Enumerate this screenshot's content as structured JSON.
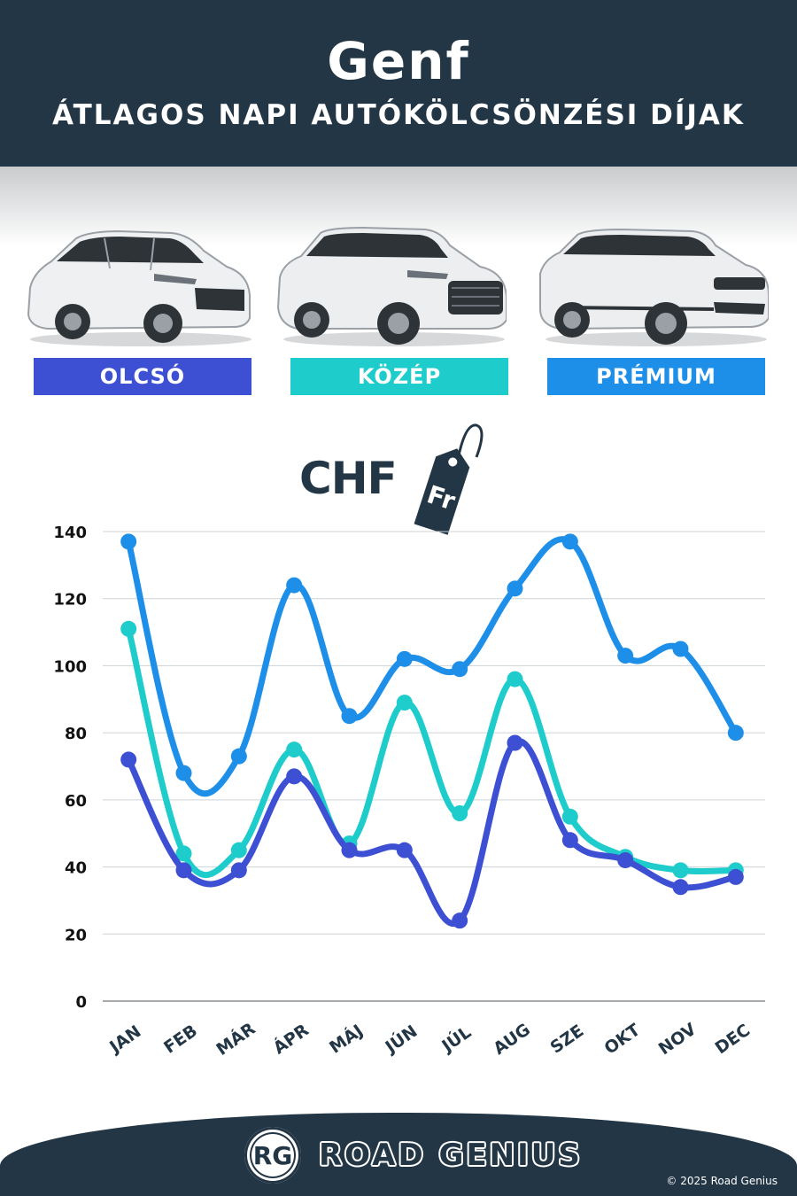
{
  "header": {
    "city": "Genf",
    "subtitle": "ÁTLAGOS NAPI AUTÓKÖLCSÖNZÉSI DÍJAK"
  },
  "categories": [
    {
      "label": "OLCSÓ",
      "color": "#3D4FD3",
      "car_icon": "hatchback-car-icon"
    },
    {
      "label": "KÖZÉP",
      "color": "#1DCCCB",
      "car_icon": "suv-car-icon"
    },
    {
      "label": "PRÉMIUM",
      "color": "#1E8FE8",
      "car_icon": "luxury-suv-car-icon"
    }
  ],
  "currency": {
    "label": "CHF",
    "tag_text": "Fr"
  },
  "chart_data": {
    "type": "line",
    "categories": [
      "JAN",
      "FEB",
      "MÁR",
      "ÁPR",
      "MÁJ",
      "JÚN",
      "JÚL",
      "AUG",
      "SZE",
      "OKT",
      "NOV",
      "DEC"
    ],
    "series": [
      {
        "name": "OLCSÓ",
        "color": "#3D4FD3",
        "values": [
          72,
          39,
          39,
          67,
          45,
          45,
          24,
          77,
          48,
          42,
          34,
          37
        ]
      },
      {
        "name": "KÖZÉP",
        "color": "#1DCCCB",
        "values": [
          111,
          44,
          45,
          75,
          47,
          89,
          56,
          96,
          55,
          43,
          39,
          39
        ]
      },
      {
        "name": "PRÉMIUM",
        "color": "#1E8FE8",
        "values": [
          137,
          68,
          73,
          124,
          85,
          102,
          99,
          123,
          137,
          103,
          105,
          80
        ]
      }
    ],
    "yticks": [
      0,
      20,
      40,
      60,
      80,
      100,
      120,
      140
    ],
    "ylim": [
      0,
      140
    ],
    "grid": true,
    "title": "",
    "xlabel": "",
    "ylabel": ""
  },
  "footer": {
    "logo_text": "RG",
    "brand": "ROAD GENIUS",
    "copyright": "© 2025 Road Genius"
  }
}
